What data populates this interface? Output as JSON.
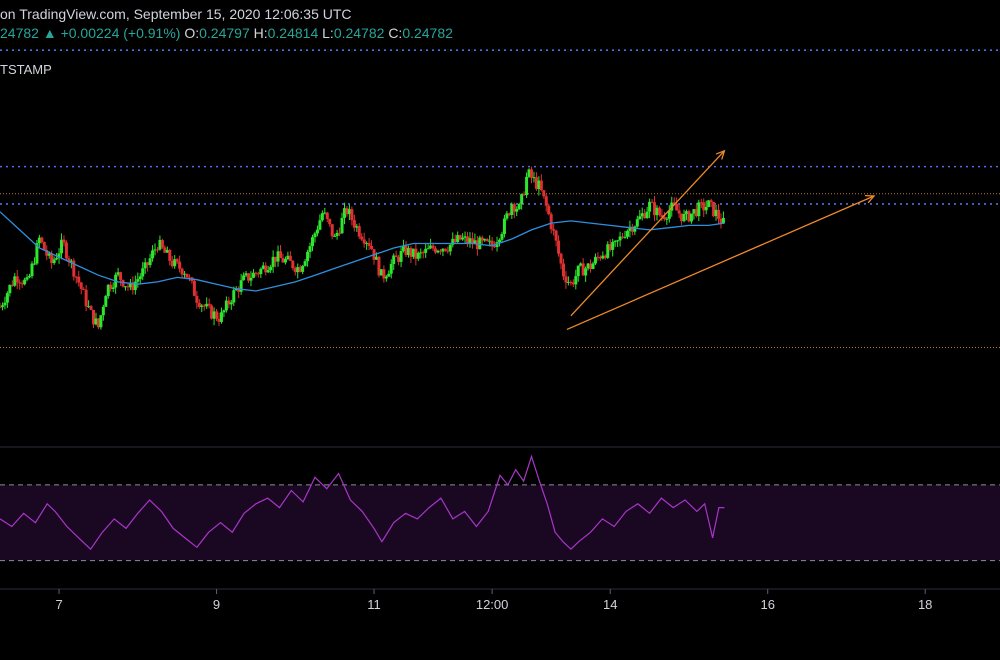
{
  "header": {
    "source_line": "on TradingView.com, September 15, 2020 12:06:35 UTC",
    "price_line": {
      "last": "24782",
      "arrow": "▲",
      "change": "+0.00224 (+0.91%)",
      "o_label": "O:",
      "o_value": "0.24797",
      "h_label": "H:",
      "h_value": "0.24814",
      "l_label": "L:",
      "l_value": "0.24782",
      "c_label": "C:",
      "c_value": "0.24782"
    },
    "exchange": "TSTAMP"
  },
  "colors": {
    "background": "#000000",
    "bull": "#26a69a",
    "bull_bright": "#2ee62e",
    "bear": "#e03030",
    "ma": "#2f8fdf",
    "level_blue": "#4f6fe6",
    "level_orange": "#b7782f",
    "trend": "#ef8a2a",
    "rsi": "#a836c8",
    "rsi_band": "#1a0722",
    "text": "#d1d4dc",
    "grid_separator": "#2a2e39"
  },
  "chart_data": {
    "type": "candlestick",
    "title": "",
    "x_ticks": [
      "7",
      "9",
      "11",
      "12:00",
      "14",
      "16",
      "18"
    ],
    "x_tick_values": [
      7,
      9,
      11,
      12.5,
      14,
      16,
      18
    ],
    "xlim": [
      6.25,
      18.95
    ],
    "ylim": [
      0.238,
      0.256
    ],
    "horizontal_levels": [
      {
        "value": 0.25555,
        "style": "blue-dotted"
      },
      {
        "value": 0.2504,
        "style": "blue-dotted"
      },
      {
        "value": 0.2492,
        "style": "orange-dotted"
      },
      {
        "value": 0.24875,
        "style": "blue-dotted"
      },
      {
        "value": 0.2424,
        "style": "orange-dotted"
      }
    ],
    "trendlines": [
      {
        "from": [
          13.5,
          0.2438
        ],
        "to": [
          15.45,
          0.2511
        ],
        "arrow": true
      },
      {
        "from": [
          13.45,
          0.2432
        ],
        "to": [
          17.35,
          0.2491
        ],
        "arrow": true
      }
    ],
    "price_path": [
      [
        6.25,
        0.2442
      ],
      [
        6.45,
        0.2456
      ],
      [
        6.6,
        0.2452
      ],
      [
        6.75,
        0.2472
      ],
      [
        6.9,
        0.2461
      ],
      [
        7.05,
        0.247
      ],
      [
        7.25,
        0.2453
      ],
      [
        7.4,
        0.2439
      ],
      [
        7.5,
        0.2433
      ],
      [
        7.6,
        0.245
      ],
      [
        7.75,
        0.2456
      ],
      [
        7.9,
        0.245
      ],
      [
        8.1,
        0.2459
      ],
      [
        8.25,
        0.247
      ],
      [
        8.45,
        0.2461
      ],
      [
        8.6,
        0.2458
      ],
      [
        8.75,
        0.2446
      ],
      [
        8.9,
        0.244
      ],
      [
        9.05,
        0.2437
      ],
      [
        9.2,
        0.2447
      ],
      [
        9.35,
        0.2454
      ],
      [
        9.55,
        0.2458
      ],
      [
        9.75,
        0.2464
      ],
      [
        9.9,
        0.2462
      ],
      [
        10.05,
        0.2459
      ],
      [
        10.2,
        0.247
      ],
      [
        10.35,
        0.2484
      ],
      [
        10.5,
        0.2472
      ],
      [
        10.65,
        0.2485
      ],
      [
        10.8,
        0.2476
      ],
      [
        10.95,
        0.247
      ],
      [
        11.1,
        0.2455
      ],
      [
        11.25,
        0.2462
      ],
      [
        11.4,
        0.2467
      ],
      [
        11.55,
        0.2464
      ],
      [
        11.75,
        0.2468
      ],
      [
        11.95,
        0.2469
      ],
      [
        12.1,
        0.2472
      ],
      [
        12.3,
        0.247
      ],
      [
        12.5,
        0.2469
      ],
      [
        12.65,
        0.2478
      ],
      [
        12.75,
        0.2488
      ],
      [
        12.85,
        0.2485
      ],
      [
        12.95,
        0.2501
      ],
      [
        13.1,
        0.2495
      ],
      [
        13.2,
        0.2485
      ],
      [
        13.3,
        0.2472
      ],
      [
        13.4,
        0.2457
      ],
      [
        13.5,
        0.2452
      ],
      [
        13.6,
        0.2458
      ],
      [
        13.75,
        0.246
      ],
      [
        13.9,
        0.2466
      ],
      [
        14.05,
        0.2468
      ],
      [
        14.2,
        0.2476
      ],
      [
        14.35,
        0.248
      ],
      [
        14.5,
        0.2487
      ],
      [
        14.65,
        0.2482
      ],
      [
        14.8,
        0.2486
      ],
      [
        14.95,
        0.2481
      ],
      [
        15.1,
        0.2485
      ],
      [
        15.25,
        0.2487
      ],
      [
        15.35,
        0.2483
      ],
      [
        15.45,
        0.24782
      ]
    ],
    "moving_average": [
      [
        6.25,
        0.2484
      ],
      [
        6.5,
        0.2476
      ],
      [
        6.75,
        0.2468
      ],
      [
        7.0,
        0.2464
      ],
      [
        7.25,
        0.246
      ],
      [
        7.5,
        0.2456
      ],
      [
        7.75,
        0.2453
      ],
      [
        8.0,
        0.2452
      ],
      [
        8.25,
        0.2453
      ],
      [
        8.5,
        0.2455
      ],
      [
        8.75,
        0.2454
      ],
      [
        9.0,
        0.2452
      ],
      [
        9.25,
        0.245
      ],
      [
        9.5,
        0.2449
      ],
      [
        9.75,
        0.2451
      ],
      [
        10.0,
        0.2453
      ],
      [
        10.25,
        0.2456
      ],
      [
        10.5,
        0.2459
      ],
      [
        10.75,
        0.2462
      ],
      [
        11.0,
        0.2465
      ],
      [
        11.25,
        0.2468
      ],
      [
        11.5,
        0.247
      ],
      [
        11.75,
        0.247
      ],
      [
        12.0,
        0.247
      ],
      [
        12.25,
        0.247
      ],
      [
        12.5,
        0.2469
      ],
      [
        12.75,
        0.2472
      ],
      [
        13.0,
        0.2476
      ],
      [
        13.25,
        0.2479
      ],
      [
        13.5,
        0.248
      ],
      [
        13.75,
        0.2479
      ],
      [
        14.0,
        0.2478
      ],
      [
        14.25,
        0.2477
      ],
      [
        14.5,
        0.2476
      ],
      [
        14.75,
        0.2477
      ],
      [
        15.0,
        0.2478
      ],
      [
        15.25,
        0.2478
      ],
      [
        15.45,
        0.2479
      ]
    ],
    "rsi": {
      "ylim": [
        15,
        90
      ],
      "bands": [
        70,
        30
      ],
      "points": [
        [
          6.25,
          52
        ],
        [
          6.4,
          48
        ],
        [
          6.55,
          55
        ],
        [
          6.7,
          50
        ],
        [
          6.85,
          60
        ],
        [
          6.95,
          56
        ],
        [
          7.1,
          48
        ],
        [
          7.25,
          42
        ],
        [
          7.4,
          36
        ],
        [
          7.55,
          45
        ],
        [
          7.7,
          52
        ],
        [
          7.85,
          47
        ],
        [
          8.0,
          55
        ],
        [
          8.15,
          62
        ],
        [
          8.3,
          56
        ],
        [
          8.45,
          47
        ],
        [
          8.6,
          42
        ],
        [
          8.75,
          37
        ],
        [
          8.9,
          45
        ],
        [
          9.05,
          50
        ],
        [
          9.2,
          45
        ],
        [
          9.35,
          55
        ],
        [
          9.5,
          60
        ],
        [
          9.65,
          63
        ],
        [
          9.8,
          58
        ],
        [
          9.95,
          67
        ],
        [
          10.1,
          61
        ],
        [
          10.25,
          74
        ],
        [
          10.4,
          68
        ],
        [
          10.55,
          76
        ],
        [
          10.7,
          62
        ],
        [
          10.85,
          56
        ],
        [
          11.0,
          47
        ],
        [
          11.1,
          40
        ],
        [
          11.25,
          50
        ],
        [
          11.4,
          55
        ],
        [
          11.55,
          52
        ],
        [
          11.7,
          58
        ],
        [
          11.85,
          63
        ],
        [
          12.0,
          52
        ],
        [
          12.15,
          56
        ],
        [
          12.3,
          48
        ],
        [
          12.45,
          56
        ],
        [
          12.6,
          75
        ],
        [
          12.7,
          70
        ],
        [
          12.8,
          78
        ],
        [
          12.9,
          72
        ],
        [
          13.0,
          85
        ],
        [
          13.1,
          72
        ],
        [
          13.2,
          60
        ],
        [
          13.3,
          45
        ],
        [
          13.4,
          40
        ],
        [
          13.5,
          36
        ],
        [
          13.6,
          40
        ],
        [
          13.75,
          45
        ],
        [
          13.9,
          52
        ],
        [
          14.05,
          48
        ],
        [
          14.2,
          56
        ],
        [
          14.35,
          60
        ],
        [
          14.5,
          55
        ],
        [
          14.65,
          63
        ],
        [
          14.8,
          58
        ],
        [
          14.95,
          62
        ],
        [
          15.1,
          56
        ],
        [
          15.2,
          60
        ],
        [
          15.3,
          42
        ],
        [
          15.38,
          58
        ],
        [
          15.45,
          58
        ]
      ]
    }
  }
}
